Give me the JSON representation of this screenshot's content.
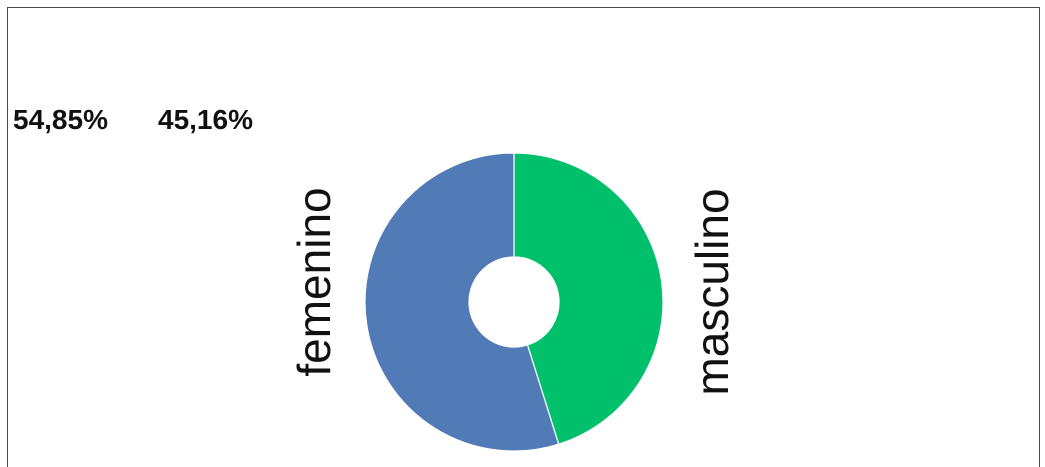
{
  "chart_data": {
    "type": "pie",
    "variant": "donut",
    "categories": [
      "femenino",
      "masculino"
    ],
    "values": [
      54.85,
      45.16
    ],
    "value_labels": [
      "54,85%",
      "45,16%"
    ],
    "colors": [
      "#517bb6",
      "#00c06b"
    ],
    "start_angle_deg": 0,
    "direction": "clockwise",
    "title": ""
  }
}
